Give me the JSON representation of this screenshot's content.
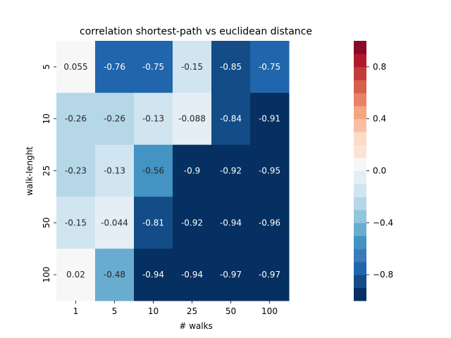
{
  "chart_data": {
    "type": "heatmap",
    "title": "correlation shortest-path vs euclidean distance",
    "xlabel": "# walks",
    "ylabel": "walk-lenght",
    "x_categories": [
      "1",
      "5",
      "10",
      "25",
      "50",
      "100"
    ],
    "y_categories": [
      "5",
      "10",
      "25",
      "50",
      "100"
    ],
    "values": [
      [
        0.055,
        -0.76,
        -0.75,
        -0.15,
        -0.85,
        -0.75
      ],
      [
        -0.26,
        -0.26,
        -0.13,
        -0.088,
        -0.84,
        -0.91
      ],
      [
        -0.23,
        -0.13,
        -0.56,
        -0.9,
        -0.92,
        -0.95
      ],
      [
        -0.15,
        -0.044,
        -0.81,
        -0.92,
        -0.94,
        -0.96
      ],
      [
        0.02,
        -0.48,
        -0.94,
        -0.94,
        -0.97,
        -0.97
      ]
    ],
    "annotations": [
      [
        "0.055",
        "-0.76",
        "-0.75",
        "-0.15",
        "-0.85",
        "-0.75"
      ],
      [
        "-0.26",
        "-0.26",
        "-0.13",
        "-0.088",
        "-0.84",
        "-0.91"
      ],
      [
        "-0.23",
        "-0.13",
        "-0.56",
        "-0.9",
        "-0.92",
        "-0.95"
      ],
      [
        "-0.15",
        "-0.044",
        "-0.81",
        "-0.92",
        "-0.94",
        "-0.96"
      ],
      [
        "0.02",
        "-0.48",
        "-0.94",
        "-0.94",
        "-0.97",
        "-0.97"
      ]
    ],
    "colorbar": {
      "range": [
        -1,
        1
      ],
      "ticks": [
        0.8,
        0.4,
        0.0,
        -0.4,
        -0.8
      ],
      "tick_labels": [
        "0.8",
        "0.4",
        "0.0",
        "−0.4",
        "−0.8"
      ],
      "colors": [
        "#053061",
        "#134c87",
        "#2166ac",
        "#3a7bb8",
        "#4393c3",
        "#6aacd0",
        "#92c5de",
        "#b5d7e8",
        "#d1e5f0",
        "#e4eef4",
        "#f7f7f7",
        "#fbe4d7",
        "#fddbc7",
        "#f8bfa4",
        "#f4a582",
        "#e58267",
        "#d6604d",
        "#c33b3b",
        "#b2182b",
        "#8b0a26"
      ],
      "placement": "right"
    }
  }
}
